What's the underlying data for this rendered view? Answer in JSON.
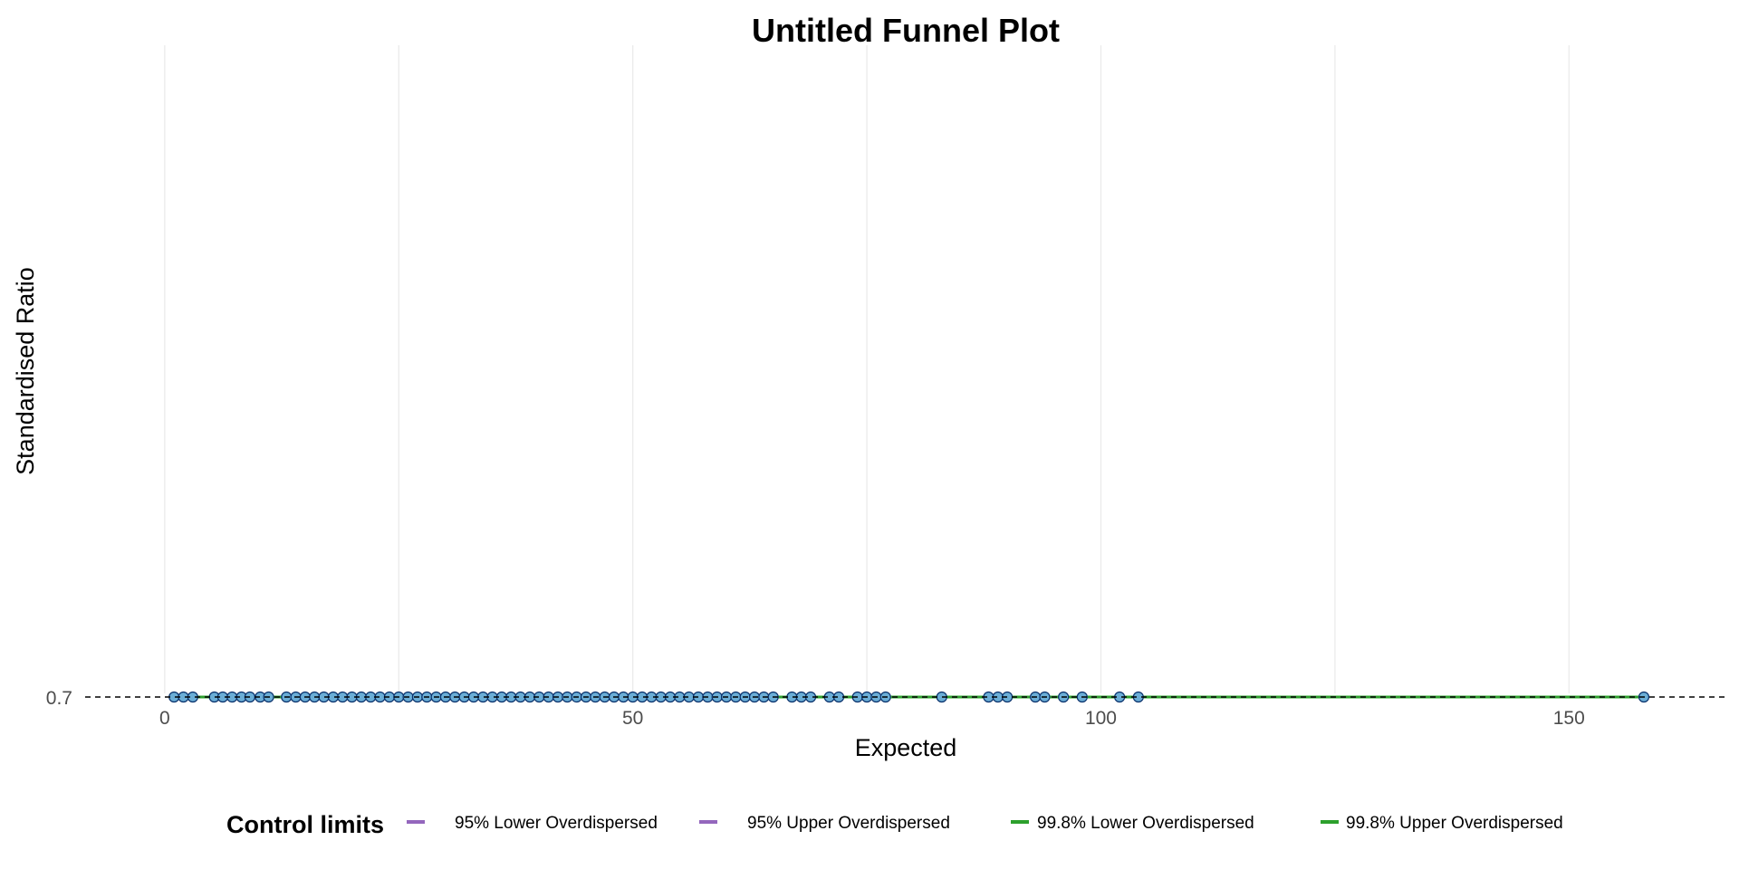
{
  "chart_data": {
    "type": "scatter",
    "title": "Untitled Funnel Plot",
    "xlabel": "Expected",
    "ylabel": "Standardised Ratio",
    "xlim": [
      -8.5,
      167
    ],
    "x_ticks": [
      0,
      50,
      100,
      150
    ],
    "x_minor_ticks": [
      25,
      75,
      125
    ],
    "y_ticks": [
      0.7
    ],
    "y_tick_labels": [
      "0.7"
    ],
    "target_line": 0.7,
    "grid": "vertical",
    "points": {
      "y": 0.7,
      "x": [
        1,
        2,
        3,
        5.3,
        6.2,
        7.2,
        8.2,
        9.1,
        10.2,
        11.1,
        13,
        14,
        15,
        16,
        17,
        18,
        19,
        20,
        21,
        22,
        23,
        24,
        25,
        26,
        27,
        28,
        29,
        30,
        31,
        32,
        33,
        34,
        35,
        36,
        37,
        38,
        39,
        40,
        41,
        42,
        43,
        44,
        45,
        46,
        47,
        48,
        49,
        50,
        51,
        52,
        53,
        54,
        55,
        56,
        57,
        58,
        59,
        60,
        61,
        62,
        63,
        64,
        65,
        67,
        68,
        69,
        71,
        72,
        74,
        75,
        76,
        77,
        83,
        88,
        89,
        90,
        93,
        94,
        96,
        98,
        102,
        104,
        158
      ]
    },
    "legend": {
      "title": "Control limits",
      "position": "bottom",
      "items": [
        {
          "label": "95% Lower Overdispersed",
          "color": "#9467bd"
        },
        {
          "label": "95% Upper Overdispersed",
          "color": "#9467bd"
        },
        {
          "label": "99.8% Lower Overdispersed",
          "color": "#2ca02c"
        },
        {
          "label": "99.8% Upper Overdispersed",
          "color": "#2ca02c"
        }
      ]
    },
    "limit_lines": [
      {
        "name": "95% Lower Overdispersed",
        "y": 0.7,
        "color": "#9467bd"
      },
      {
        "name": "95% Upper Overdispersed",
        "y": 0.7,
        "color": "#9467bd"
      },
      {
        "name": "99.8% Lower Overdispersed",
        "y": 0.7,
        "color": "#2ca02c"
      },
      {
        "name": "99.8% Upper Overdispersed",
        "y": 0.7,
        "color": "#2ca02c"
      }
    ],
    "colors": {
      "point_fill": "#6baed6",
      "point_stroke": "#08306b",
      "grid": "#ebebeb",
      "target_line": "#000000"
    }
  }
}
